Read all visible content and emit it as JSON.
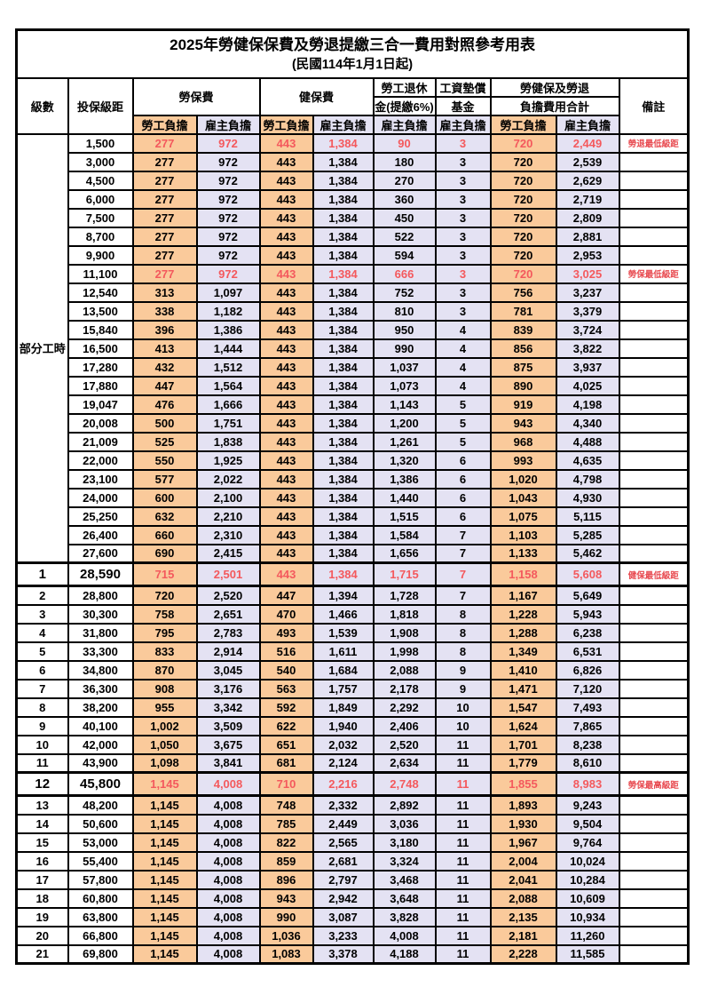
{
  "title": "2025年勞健保保費及勞退提繳三合一費用對照參考用表",
  "subtitle": "(民國114年1月1日起)",
  "header": {
    "level": "級數",
    "bracket": "投保級距",
    "labor": "勞保費",
    "health": "健保費",
    "pension_line1": "勞工退休",
    "pension_line2": "金(提繳6%)",
    "wage_fund_line1": "工資墊償",
    "wage_fund_line2": "基金",
    "total_line1": "勞健保及勞退",
    "total_line2": "負擔費用合計",
    "note": "備註",
    "employee": "勞工負擔",
    "employer": "雇主負擔"
  },
  "part_time_label": "部分工時",
  "colors": {
    "employee_bg": "#FACA9B",
    "employer_bg": "#E4E2F3",
    "highlight_text": "#F4595D",
    "note_text": "#E84A50",
    "border": "#000000"
  },
  "rows": [
    {
      "lv": null,
      "br": "1,500",
      "v": [
        "277",
        "972",
        "443",
        "1,384",
        "90",
        "3",
        "720",
        "2,449"
      ],
      "note": "勞退最低級距",
      "hl": true,
      "bold": false
    },
    {
      "lv": null,
      "br": "3,000",
      "v": [
        "277",
        "972",
        "443",
        "1,384",
        "180",
        "3",
        "720",
        "2,539"
      ],
      "note": "",
      "hl": false,
      "bold": false
    },
    {
      "lv": null,
      "br": "4,500",
      "v": [
        "277",
        "972",
        "443",
        "1,384",
        "270",
        "3",
        "720",
        "2,629"
      ],
      "note": "",
      "hl": false,
      "bold": false
    },
    {
      "lv": null,
      "br": "6,000",
      "v": [
        "277",
        "972",
        "443",
        "1,384",
        "360",
        "3",
        "720",
        "2,719"
      ],
      "note": "",
      "hl": false,
      "bold": false
    },
    {
      "lv": null,
      "br": "7,500",
      "v": [
        "277",
        "972",
        "443",
        "1,384",
        "450",
        "3",
        "720",
        "2,809"
      ],
      "note": "",
      "hl": false,
      "bold": false
    },
    {
      "lv": null,
      "br": "8,700",
      "v": [
        "277",
        "972",
        "443",
        "1,384",
        "522",
        "3",
        "720",
        "2,881"
      ],
      "note": "",
      "hl": false,
      "bold": false
    },
    {
      "lv": null,
      "br": "9,900",
      "v": [
        "277",
        "972",
        "443",
        "1,384",
        "594",
        "3",
        "720",
        "2,953"
      ],
      "note": "",
      "hl": false,
      "bold": false
    },
    {
      "lv": null,
      "br": "11,100",
      "v": [
        "277",
        "972",
        "443",
        "1,384",
        "666",
        "3",
        "720",
        "3,025"
      ],
      "note": "勞保最低級距",
      "hl": true,
      "bold": false
    },
    {
      "lv": null,
      "br": "12,540",
      "v": [
        "313",
        "1,097",
        "443",
        "1,384",
        "752",
        "3",
        "756",
        "3,237"
      ],
      "note": "",
      "hl": false,
      "bold": false
    },
    {
      "lv": null,
      "br": "13,500",
      "v": [
        "338",
        "1,182",
        "443",
        "1,384",
        "810",
        "3",
        "781",
        "3,379"
      ],
      "note": "",
      "hl": false,
      "bold": false
    },
    {
      "lv": null,
      "br": "15,840",
      "v": [
        "396",
        "1,386",
        "443",
        "1,384",
        "950",
        "4",
        "839",
        "3,724"
      ],
      "note": "",
      "hl": false,
      "bold": false
    },
    {
      "lv": null,
      "br": "16,500",
      "v": [
        "413",
        "1,444",
        "443",
        "1,384",
        "990",
        "4",
        "856",
        "3,822"
      ],
      "note": "",
      "hl": false,
      "bold": false
    },
    {
      "lv": null,
      "br": "17,280",
      "v": [
        "432",
        "1,512",
        "443",
        "1,384",
        "1,037",
        "4",
        "875",
        "3,937"
      ],
      "note": "",
      "hl": false,
      "bold": false
    },
    {
      "lv": null,
      "br": "17,880",
      "v": [
        "447",
        "1,564",
        "443",
        "1,384",
        "1,073",
        "4",
        "890",
        "4,025"
      ],
      "note": "",
      "hl": false,
      "bold": false
    },
    {
      "lv": null,
      "br": "19,047",
      "v": [
        "476",
        "1,666",
        "443",
        "1,384",
        "1,143",
        "5",
        "919",
        "4,198"
      ],
      "note": "",
      "hl": false,
      "bold": false
    },
    {
      "lv": null,
      "br": "20,008",
      "v": [
        "500",
        "1,751",
        "443",
        "1,384",
        "1,200",
        "5",
        "943",
        "4,340"
      ],
      "note": "",
      "hl": false,
      "bold": false
    },
    {
      "lv": null,
      "br": "21,009",
      "v": [
        "525",
        "1,838",
        "443",
        "1,384",
        "1,261",
        "5",
        "968",
        "4,488"
      ],
      "note": "",
      "hl": false,
      "bold": false
    },
    {
      "lv": null,
      "br": "22,000",
      "v": [
        "550",
        "1,925",
        "443",
        "1,384",
        "1,320",
        "6",
        "993",
        "4,635"
      ],
      "note": "",
      "hl": false,
      "bold": false
    },
    {
      "lv": null,
      "br": "23,100",
      "v": [
        "577",
        "2,022",
        "443",
        "1,384",
        "1,386",
        "6",
        "1,020",
        "4,798"
      ],
      "note": "",
      "hl": false,
      "bold": false
    },
    {
      "lv": null,
      "br": "24,000",
      "v": [
        "600",
        "2,100",
        "443",
        "1,384",
        "1,440",
        "6",
        "1,043",
        "4,930"
      ],
      "note": "",
      "hl": false,
      "bold": false
    },
    {
      "lv": null,
      "br": "25,250",
      "v": [
        "632",
        "2,210",
        "443",
        "1,384",
        "1,515",
        "6",
        "1,075",
        "5,115"
      ],
      "note": "",
      "hl": false,
      "bold": false
    },
    {
      "lv": null,
      "br": "26,400",
      "v": [
        "660",
        "2,310",
        "443",
        "1,384",
        "1,584",
        "7",
        "1,103",
        "5,285"
      ],
      "note": "",
      "hl": false,
      "bold": false
    },
    {
      "lv": null,
      "br": "27,600",
      "v": [
        "690",
        "2,415",
        "443",
        "1,384",
        "1,656",
        "7",
        "1,133",
        "5,462"
      ],
      "note": "",
      "hl": false,
      "bold": false
    },
    {
      "lv": "1",
      "br": "28,590",
      "v": [
        "715",
        "2,501",
        "443",
        "1,384",
        "1,715",
        "7",
        "1,158",
        "5,608"
      ],
      "note": "健保最低級距",
      "hl": true,
      "bold": true
    },
    {
      "lv": "2",
      "br": "28,800",
      "v": [
        "720",
        "2,520",
        "447",
        "1,394",
        "1,728",
        "7",
        "1,167",
        "5,649"
      ],
      "note": "",
      "hl": false,
      "bold": false
    },
    {
      "lv": "3",
      "br": "30,300",
      "v": [
        "758",
        "2,651",
        "470",
        "1,466",
        "1,818",
        "8",
        "1,228",
        "5,943"
      ],
      "note": "",
      "hl": false,
      "bold": false
    },
    {
      "lv": "4",
      "br": "31,800",
      "v": [
        "795",
        "2,783",
        "493",
        "1,539",
        "1,908",
        "8",
        "1,288",
        "6,238"
      ],
      "note": "",
      "hl": false,
      "bold": false
    },
    {
      "lv": "5",
      "br": "33,300",
      "v": [
        "833",
        "2,914",
        "516",
        "1,611",
        "1,998",
        "8",
        "1,349",
        "6,531"
      ],
      "note": "",
      "hl": false,
      "bold": false
    },
    {
      "lv": "6",
      "br": "34,800",
      "v": [
        "870",
        "3,045",
        "540",
        "1,684",
        "2,088",
        "9",
        "1,410",
        "6,826"
      ],
      "note": "",
      "hl": false,
      "bold": false
    },
    {
      "lv": "7",
      "br": "36,300",
      "v": [
        "908",
        "3,176",
        "563",
        "1,757",
        "2,178",
        "9",
        "1,471",
        "7,120"
      ],
      "note": "",
      "hl": false,
      "bold": false
    },
    {
      "lv": "8",
      "br": "38,200",
      "v": [
        "955",
        "3,342",
        "592",
        "1,849",
        "2,292",
        "10",
        "1,547",
        "7,493"
      ],
      "note": "",
      "hl": false,
      "bold": false
    },
    {
      "lv": "9",
      "br": "40,100",
      "v": [
        "1,002",
        "3,509",
        "622",
        "1,940",
        "2,406",
        "10",
        "1,624",
        "7,865"
      ],
      "note": "",
      "hl": false,
      "bold": false
    },
    {
      "lv": "10",
      "br": "42,000",
      "v": [
        "1,050",
        "3,675",
        "651",
        "2,032",
        "2,520",
        "11",
        "1,701",
        "8,238"
      ],
      "note": "",
      "hl": false,
      "bold": false
    },
    {
      "lv": "11",
      "br": "43,900",
      "v": [
        "1,098",
        "3,841",
        "681",
        "2,124",
        "2,634",
        "11",
        "1,779",
        "8,610"
      ],
      "note": "",
      "hl": false,
      "bold": false
    },
    {
      "lv": "12",
      "br": "45,800",
      "v": [
        "1,145",
        "4,008",
        "710",
        "2,216",
        "2,748",
        "11",
        "1,855",
        "8,983"
      ],
      "note": "勞保最高級距",
      "hl": true,
      "bold": true
    },
    {
      "lv": "13",
      "br": "48,200",
      "v": [
        "1,145",
        "4,008",
        "748",
        "2,332",
        "2,892",
        "11",
        "1,893",
        "9,243"
      ],
      "note": "",
      "hl": false,
      "bold": false
    },
    {
      "lv": "14",
      "br": "50,600",
      "v": [
        "1,145",
        "4,008",
        "785",
        "2,449",
        "3,036",
        "11",
        "1,930",
        "9,504"
      ],
      "note": "",
      "hl": false,
      "bold": false
    },
    {
      "lv": "15",
      "br": "53,000",
      "v": [
        "1,145",
        "4,008",
        "822",
        "2,565",
        "3,180",
        "11",
        "1,967",
        "9,764"
      ],
      "note": "",
      "hl": false,
      "bold": false
    },
    {
      "lv": "16",
      "br": "55,400",
      "v": [
        "1,145",
        "4,008",
        "859",
        "2,681",
        "3,324",
        "11",
        "2,004",
        "10,024"
      ],
      "note": "",
      "hl": false,
      "bold": false
    },
    {
      "lv": "17",
      "br": "57,800",
      "v": [
        "1,145",
        "4,008",
        "896",
        "2,797",
        "3,468",
        "11",
        "2,041",
        "10,284"
      ],
      "note": "",
      "hl": false,
      "bold": false
    },
    {
      "lv": "18",
      "br": "60,800",
      "v": [
        "1,145",
        "4,008",
        "943",
        "2,942",
        "3,648",
        "11",
        "2,088",
        "10,609"
      ],
      "note": "",
      "hl": false,
      "bold": false
    },
    {
      "lv": "19",
      "br": "63,800",
      "v": [
        "1,145",
        "4,008",
        "990",
        "3,087",
        "3,828",
        "11",
        "2,135",
        "10,934"
      ],
      "note": "",
      "hl": false,
      "bold": false
    },
    {
      "lv": "20",
      "br": "66,800",
      "v": [
        "1,145",
        "4,008",
        "1,036",
        "3,233",
        "4,008",
        "11",
        "2,181",
        "11,260"
      ],
      "note": "",
      "hl": false,
      "bold": false
    },
    {
      "lv": "21",
      "br": "69,800",
      "v": [
        "1,145",
        "4,008",
        "1,083",
        "3,378",
        "4,188",
        "11",
        "2,228",
        "11,585"
      ],
      "note": "",
      "hl": false,
      "bold": false
    }
  ]
}
